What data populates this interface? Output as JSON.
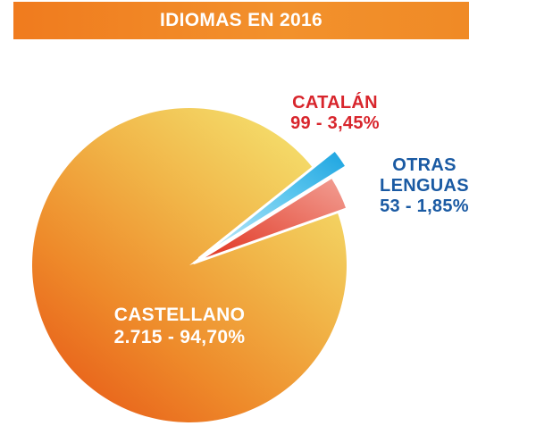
{
  "title": "IDIOMAS EN 2016",
  "colors": {
    "title_bar": "#f08a26",
    "castellano_label": "#ffffff",
    "catalan_label": "#d8252c",
    "otras_label": "#1a5aa3"
  },
  "chart_data": {
    "type": "pie",
    "title": "IDIOMAS EN 2016",
    "slices": [
      {
        "label": "CASTELLANO",
        "value": 2715,
        "percent_text": "94,70%",
        "value_text": "2.715",
        "exploded": false
      },
      {
        "label": "CATALÁN",
        "value": 99,
        "percent_text": "3,45%",
        "value_text": "99",
        "exploded": true
      },
      {
        "label": "OTRAS LENGUAS",
        "value": 53,
        "percent_text": "1,85%",
        "value_text": "53",
        "exploded": true
      }
    ]
  },
  "labels": {
    "castellano": {
      "name": "CASTELLANO",
      "detail": "2.715 - 94,70%"
    },
    "catalan": {
      "name": "CATALÁN",
      "detail": "99 - 3,45%"
    },
    "otras": {
      "name_line1": "OTRAS",
      "name_line2": "LENGUAS",
      "detail": "53 - 1,85%"
    }
  }
}
